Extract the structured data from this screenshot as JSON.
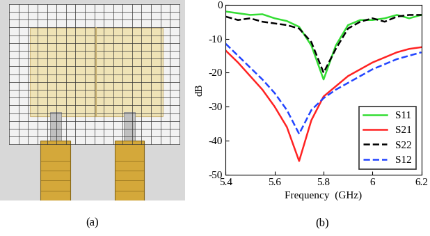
{
  "captions": [
    "(a)",
    "(b)"
  ],
  "chart_data": {
    "type": "line",
    "x_label": "Frequency  (GHz)",
    "y_label": "dB",
    "x": [
      5.4,
      5.45,
      5.5,
      5.55,
      5.6,
      5.65,
      5.7,
      5.75,
      5.8,
      5.85,
      5.9,
      5.95,
      6.0,
      6.05,
      6.1,
      6.15,
      6.2
    ],
    "series": [
      {
        "name": "S11",
        "color": "#33dd33",
        "line_style": "solid",
        "values": [
          -2,
          -2.5,
          -3,
          -2.8,
          -4,
          -4.8,
          -6.5,
          -12,
          -22,
          -12,
          -6,
          -4.5,
          -4.5,
          -4,
          -3,
          -4,
          -3
        ]
      },
      {
        "name": "S21",
        "color": "#ff2222",
        "line_style": "solid",
        "values": [
          -13.5,
          -17,
          -21,
          -25,
          -30,
          -36,
          -46,
          -34,
          -27,
          -24,
          -21,
          -19,
          -17,
          -15.5,
          -14,
          -13,
          -12.5
        ]
      },
      {
        "name": "S22",
        "color": "#000000",
        "line_style": "dashed",
        "values": [
          -3.5,
          -4.5,
          -4,
          -5,
          -5.5,
          -6,
          -7,
          -11,
          -20,
          -13,
          -7,
          -5,
          -4,
          -5,
          -3.5,
          -3,
          -3
        ]
      },
      {
        "name": "S12",
        "color": "#2244ff",
        "line_style": "dashed",
        "values": [
          -11.5,
          -15,
          -18.5,
          -22,
          -26,
          -31,
          -38,
          -31,
          -27.5,
          -25,
          -23,
          -21,
          -19,
          -17.5,
          -16,
          -15,
          -14
        ]
      }
    ],
    "xlim": [
      5.4,
      6.2
    ],
    "xticks": [
      5.4,
      5.6,
      5.8,
      6,
      6.2
    ],
    "ylim": [
      -50,
      0
    ],
    "yticks": [
      -50,
      -40,
      -30,
      -20,
      -10,
      0
    ],
    "grid": false,
    "legend": "lower right"
  }
}
